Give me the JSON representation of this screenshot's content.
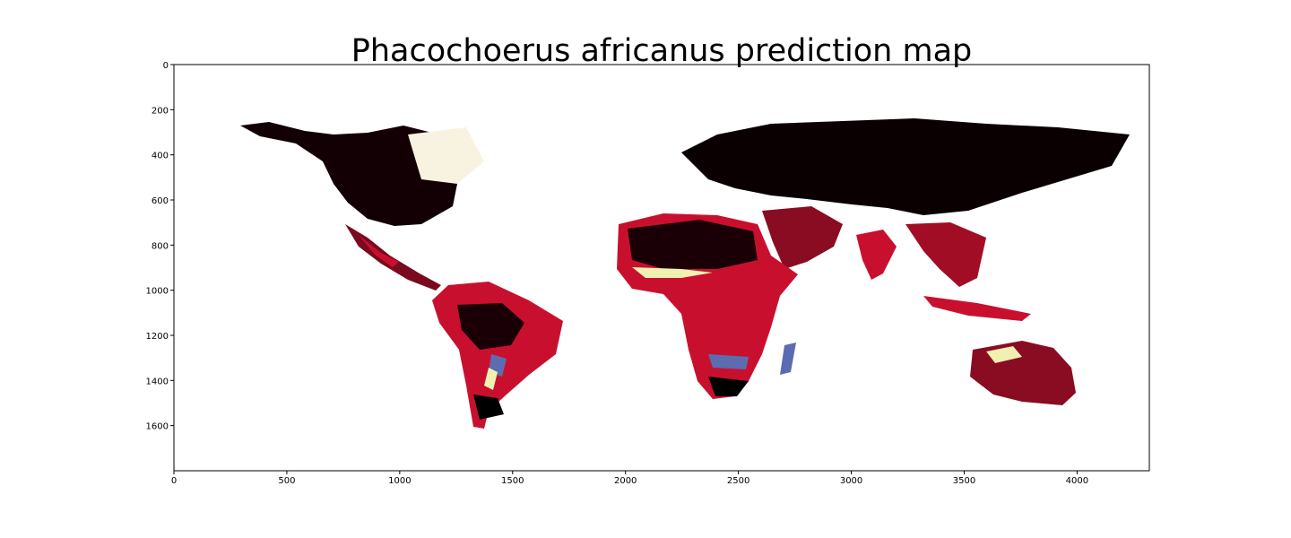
{
  "figure": {
    "title": "Phacochoerus africanus prediction map"
  },
  "chart_data": {
    "type": "heatmap",
    "title": "Phacochoerus africanus prediction map",
    "xlabel": "",
    "ylabel": "",
    "xlim": [
      0,
      4320
    ],
    "ylim": [
      1800,
      0
    ],
    "x_ticks": [
      0,
      500,
      1000,
      1500,
      2000,
      2500,
      3000,
      3500,
      4000
    ],
    "y_ticks": [
      0,
      200,
      400,
      600,
      800,
      1000,
      1200,
      1400,
      1600
    ],
    "grid": false,
    "colors": {
      "absent": "#ffffff",
      "low": "#000000",
      "medium": "#c8102e",
      "high_blue": "#5b6db0",
      "high_yellow": "#f0f0b0"
    }
  }
}
